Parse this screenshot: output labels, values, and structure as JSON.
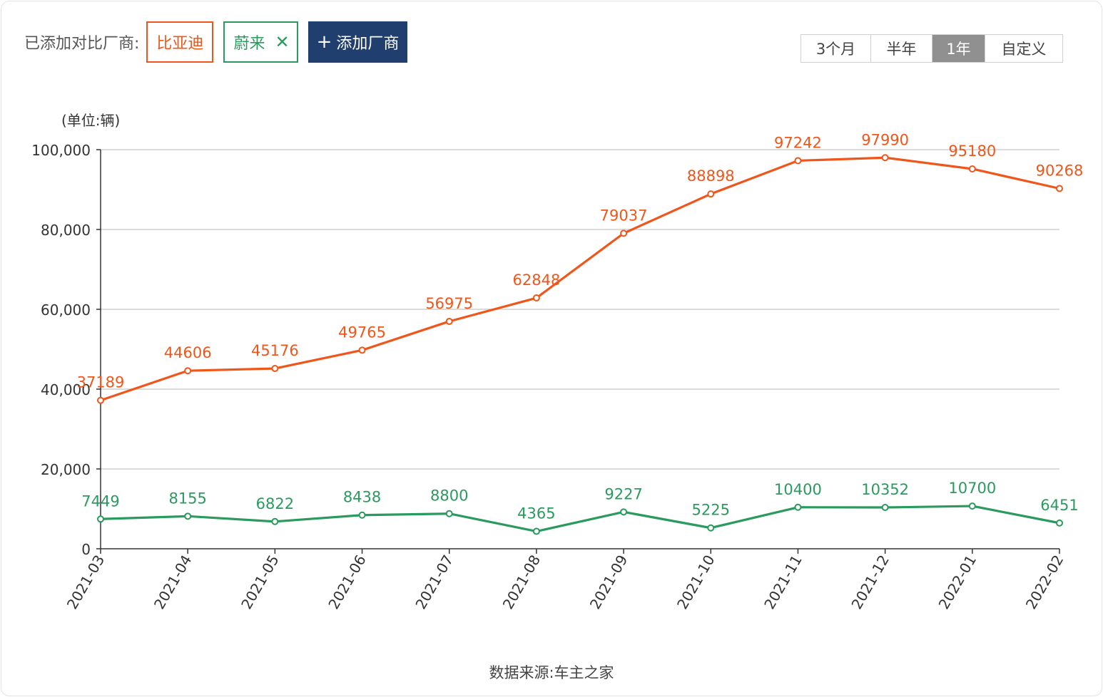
{
  "toolbar": {
    "label": "已添加对比厂商:",
    "tags": [
      {
        "name": "比亚迪",
        "color": "#f0561a"
      },
      {
        "name": "蔚来",
        "color": "#2a9a5e",
        "remove_icon": "close-icon"
      }
    ],
    "add_button": {
      "icon": "plus-icon",
      "label": "添加厂商"
    }
  },
  "range_selector": {
    "options": [
      "3个月",
      "半年",
      "1年",
      "自定义"
    ],
    "selected": "1年"
  },
  "chart_data": {
    "type": "line",
    "unit_label": "(单位:辆)",
    "categories": [
      "2021-03",
      "2021-04",
      "2021-05",
      "2021-06",
      "2021-07",
      "2021-08",
      "2021-09",
      "2021-10",
      "2021-11",
      "2021-12",
      "2022-01",
      "2022-02"
    ],
    "series": [
      {
        "name": "比亚迪",
        "color": "#f0561a",
        "values": [
          37189,
          44606,
          45176,
          49765,
          56975,
          62848,
          79037,
          88898,
          97242,
          97990,
          95180,
          90268
        ]
      },
      {
        "name": "蔚来",
        "color": "#2a9a5e",
        "values": [
          7449,
          8155,
          6822,
          8438,
          8800,
          4365,
          9227,
          5225,
          10400,
          10352,
          10700,
          6451
        ]
      }
    ],
    "yticks": [
      "0",
      "20,000",
      "40,000",
      "60,000",
      "80,000",
      "100,000"
    ],
    "ylim": [
      0,
      100000
    ],
    "grid": true,
    "data_labels": true
  },
  "footer": {
    "source": "数据来源:车主之家"
  }
}
